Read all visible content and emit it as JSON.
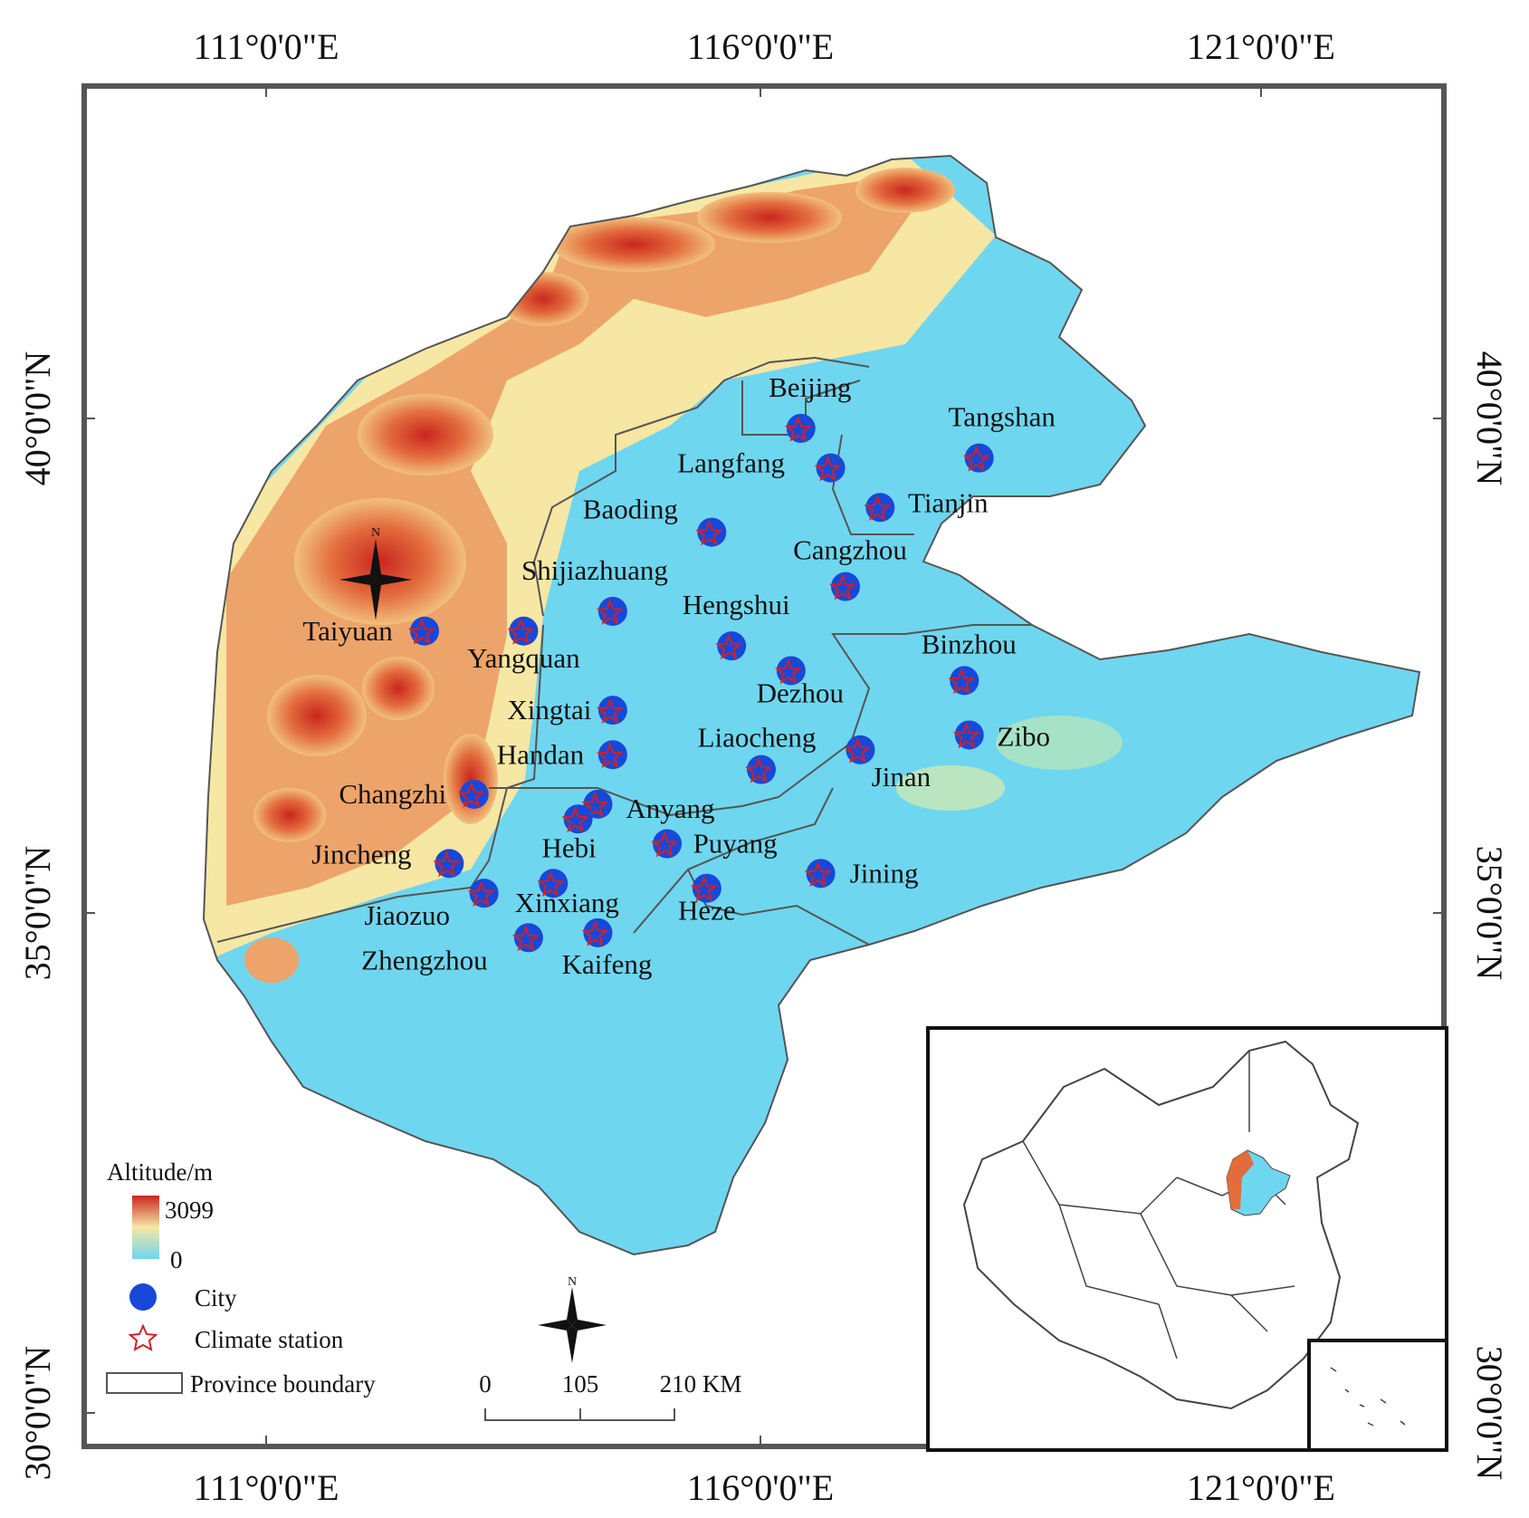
{
  "coordinates": {
    "top": [
      "111°0'0\"E",
      "116°0'0\"E",
      "121°0'0\"E"
    ],
    "bottom": [
      "111°0'0\"E",
      "116°0'0\"E",
      "121°0'0\"E"
    ],
    "left": [
      "40°0'0\"N",
      "35°0'0\"N",
      "30°0'0\"N"
    ],
    "right": [
      "40°0'0\"N",
      "35°0'0\"N",
      "30°0'0\"N"
    ]
  },
  "cities": [
    {
      "name": "Beijing",
      "lon": 116.4,
      "lat": 39.9
    },
    {
      "name": "Tangshan",
      "lon": 118.2,
      "lat": 39.6
    },
    {
      "name": "Langfang",
      "lon": 116.7,
      "lat": 39.5
    },
    {
      "name": "Tianjin",
      "lon": 117.2,
      "lat": 39.1
    },
    {
      "name": "Baoding",
      "lon": 115.5,
      "lat": 38.85
    },
    {
      "name": "Cangzhou",
      "lon": 116.85,
      "lat": 38.3
    },
    {
      "name": "Shijiazhuang",
      "lon": 114.5,
      "lat": 38.05
    },
    {
      "name": "Hengshui",
      "lon": 115.7,
      "lat": 37.7
    },
    {
      "name": "Taiyuan",
      "lon": 112.6,
      "lat": 37.85
    },
    {
      "name": "Yangquan",
      "lon": 113.6,
      "lat": 37.85
    },
    {
      "name": "Binzhou",
      "lon": 118.05,
      "lat": 37.35
    },
    {
      "name": "Dezhou",
      "lon": 116.3,
      "lat": 37.45
    },
    {
      "name": "Xingtai",
      "lon": 114.5,
      "lat": 37.05
    },
    {
      "name": "Zibo",
      "lon": 118.1,
      "lat": 36.8
    },
    {
      "name": "Liaocheng",
      "lon": 116.0,
      "lat": 36.45
    },
    {
      "name": "Jinan",
      "lon": 117.0,
      "lat": 36.65
    },
    {
      "name": "Handan",
      "lon": 114.5,
      "lat": 36.6
    },
    {
      "name": "Changzhi",
      "lon": 113.1,
      "lat": 36.2
    },
    {
      "name": "Anyang",
      "lon": 114.35,
      "lat": 36.1
    },
    {
      "name": "Hebi",
      "lon": 114.15,
      "lat": 35.95
    },
    {
      "name": "Puyang",
      "lon": 115.05,
      "lat": 35.7
    },
    {
      "name": "Jincheng",
      "lon": 112.85,
      "lat": 35.5
    },
    {
      "name": "Jining",
      "lon": 116.6,
      "lat": 35.4
    },
    {
      "name": "Jiaozuo",
      "lon": 113.2,
      "lat": 35.2
    },
    {
      "name": "Xinxiang",
      "lon": 113.9,
      "lat": 35.3
    },
    {
      "name": "Heze",
      "lon": 115.45,
      "lat": 35.25
    },
    {
      "name": "Zhengzhou",
      "lon": 113.65,
      "lat": 34.75
    },
    {
      "name": "Kaifeng",
      "lon": 114.35,
      "lat": 34.8
    }
  ],
  "legend": {
    "altitude_title": "Altitude/m",
    "altitude_max": "3099",
    "altitude_min": "0",
    "city": "City",
    "climate_station": "Climate station",
    "province_boundary": "Province boundary"
  },
  "scale_bar": {
    "labels": [
      "0",
      "105",
      "210 KM"
    ]
  },
  "north_arrow_label": "N",
  "colors": {
    "lowland": "#6fd6ef",
    "mid": "#f6e7a4",
    "high": "#e36c3d",
    "peak": "#c9261e",
    "city_dot": "#1848d9",
    "station_star": "#d42020",
    "frame": "#555555"
  }
}
